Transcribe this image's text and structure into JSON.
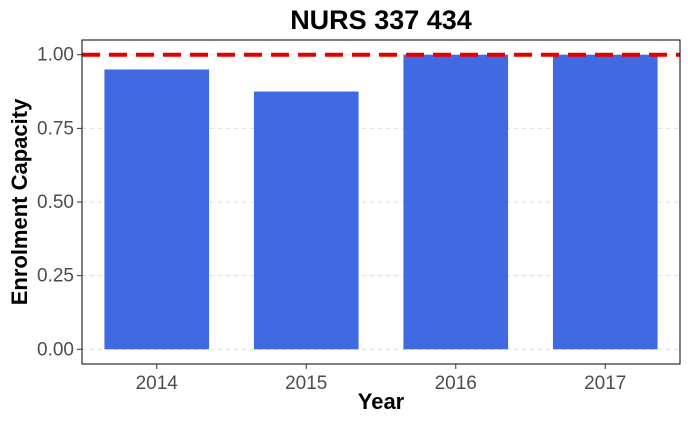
{
  "chart_data": {
    "type": "bar",
    "title": "NURS 337 434",
    "xlabel": "Year",
    "ylabel": "Enrolment Capacity",
    "categories": [
      "2014",
      "2015",
      "2016",
      "2017"
    ],
    "values": [
      0.95,
      0.875,
      1.0,
      1.0
    ],
    "ylim": [
      -0.05,
      1.05
    ],
    "yticks": [
      0.0,
      0.25,
      0.5,
      0.75,
      1.0
    ],
    "ytick_labels": [
      "0.00",
      "0.25",
      "0.50",
      "0.75",
      "1.00"
    ],
    "reference_line": {
      "y": 1.0,
      "style": "dashed",
      "color": "#e60000"
    },
    "bar_color": "#4169e1",
    "grid": "horizontal-dashed",
    "legend": "none"
  }
}
